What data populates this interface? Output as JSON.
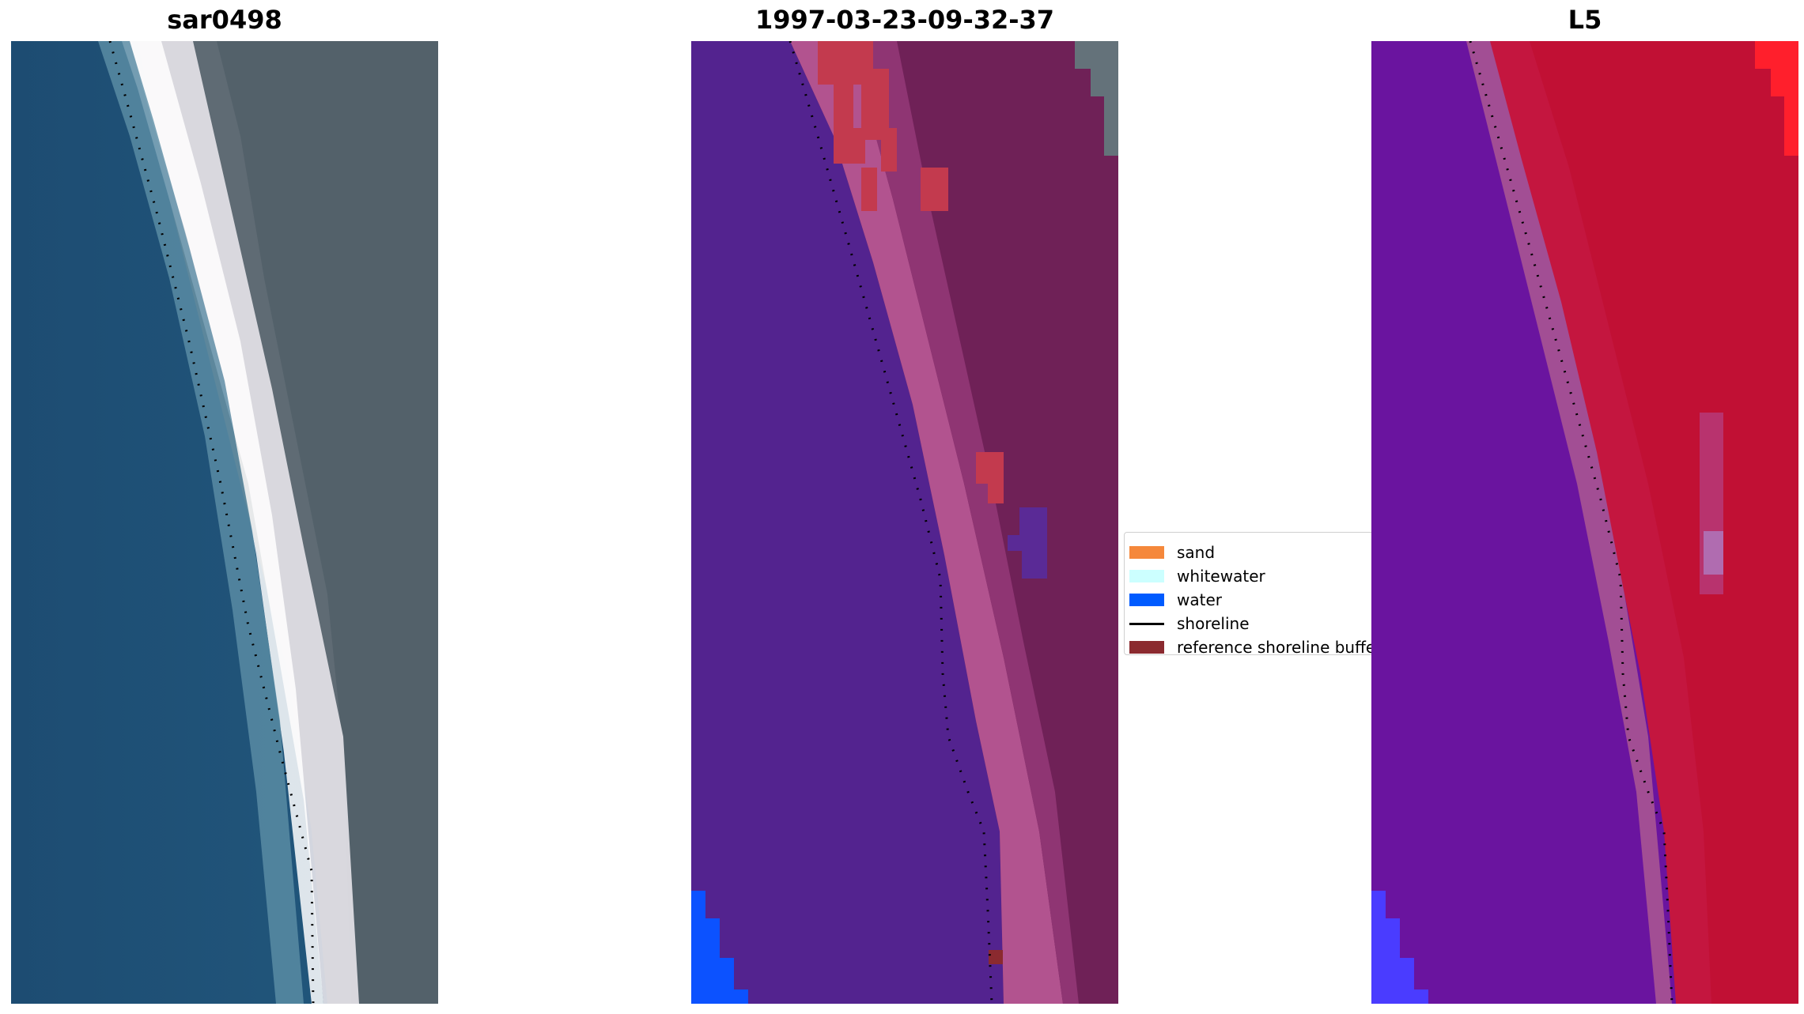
{
  "panels": [
    {
      "title": "sar0498",
      "image": "rgb-satellite-composite"
    },
    {
      "title": "1997-03-23-09-32-37",
      "image": "classified-image-overlay"
    },
    {
      "title": "L5",
      "image": "false-color-index-image"
    }
  ],
  "legend": {
    "items": [
      {
        "label": "sand",
        "color": "#f5883b",
        "kind": "patch"
      },
      {
        "label": "whitewater",
        "color": "#ccffff",
        "kind": "patch"
      },
      {
        "label": "water",
        "color": "#005bff",
        "kind": "patch"
      },
      {
        "label": "shoreline",
        "color": "#000000",
        "kind": "line"
      },
      {
        "label": "reference shoreline buffer",
        "color": "#8b2a2f",
        "kind": "patch"
      }
    ]
  }
}
